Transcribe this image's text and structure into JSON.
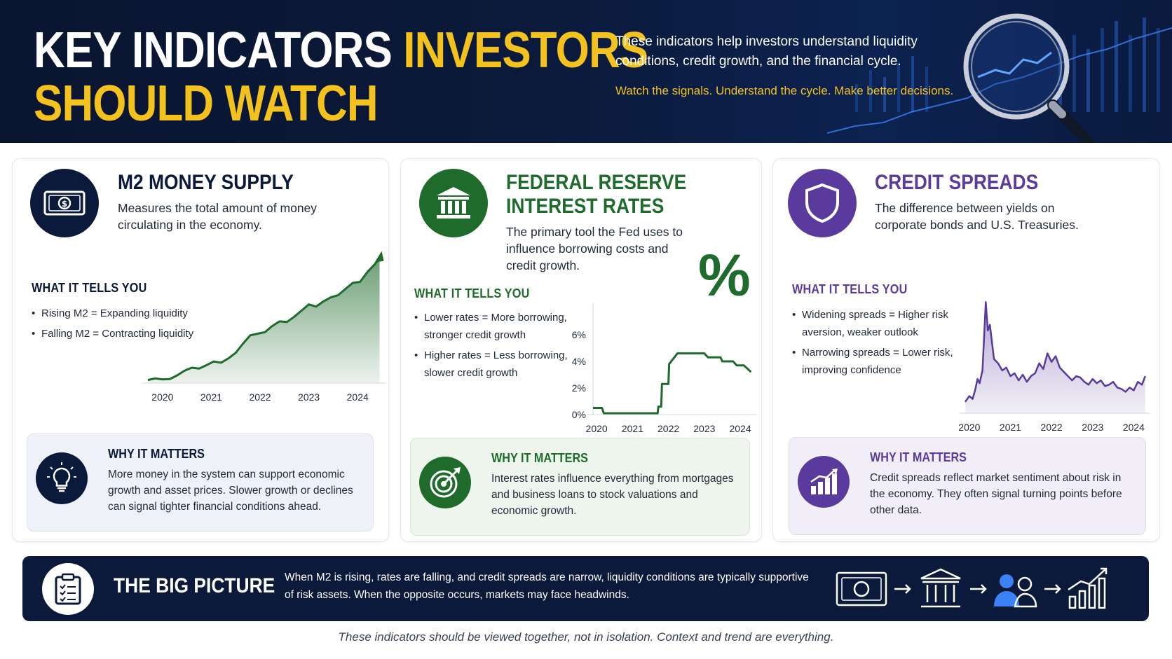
{
  "header": {
    "title_part1": "KEY INDICATORS ",
    "title_part2": "INVESTORS",
    "title_line2": "SHOULD WATCH",
    "description": "These indicators help investors understand liquidity conditions, credit growth, and the financial cycle.",
    "tagline": "Watch the signals. Understand the cycle. Make better decisions."
  },
  "colors": {
    "navy": "#0b1a3a",
    "gold": "#f4c21f",
    "green": "#1e6b2c",
    "purple": "#5b3a9e"
  },
  "panels": {
    "m2": {
      "icon": "money-bill-icon",
      "title": "M2 MONEY SUPPLY",
      "description": "Measures the total amount of money circulating in the economy.",
      "section_head": "WHAT IT TELLS YOU",
      "bullets": [
        "Rising M2 = Expanding liquidity",
        "Falling M2 = Contracting liquidity"
      ],
      "matters_icon": "lightbulb-icon",
      "matters_title": "WHY IT MATTERS",
      "matters_text": "More money in the system can support economic growth and asset prices. Slower growth or declines can signal tighter financial conditions ahead."
    },
    "fed": {
      "icon": "bank-building-icon",
      "title_line1": "FEDERAL RESERVE",
      "title_line2": "INTEREST RATES",
      "description": "The primary tool the Fed uses to influence borrowing costs and credit growth.",
      "percent_symbol": "%",
      "section_head": "WHAT IT TELLS YOU",
      "bullets": [
        "Lower rates = More borrowing, stronger credit growth",
        "Higher rates = Less borrowing, slower credit growth"
      ],
      "matters_icon": "target-icon",
      "matters_title": "WHY IT MATTERS",
      "matters_text": "Interest rates influence everything from mortgages and business loans to stock valuations and economic growth."
    },
    "credit": {
      "icon": "shield-icon",
      "title": "CREDIT SPREADS",
      "description": "The difference between yields on corporate bonds and U.S. Treasuries.",
      "section_head": "WHAT IT TELLS YOU",
      "bullets": [
        "Widening spreads = Higher risk aversion, weaker outlook",
        "Narrowing spreads = Lower risk, improving confidence"
      ],
      "matters_icon": "bar-chart-up-icon",
      "matters_title": "WHY IT MATTERS",
      "matters_text": "Credit spreads reflect market sentiment about risk in the economy. They often signal turning points before other data."
    }
  },
  "chart_data": [
    {
      "type": "area",
      "x_tick_labels": [
        "2020",
        "2021",
        "2022",
        "2023",
        "2024"
      ],
      "x": [
        2019.7,
        2019.85,
        2020.0,
        2020.15,
        2020.3,
        2020.45,
        2020.6,
        2020.75,
        2020.9,
        2021.05,
        2021.2,
        2021.35,
        2021.5,
        2021.65,
        2021.8,
        2021.95,
        2022.1,
        2022.25,
        2022.4,
        2022.55,
        2022.7,
        2022.85,
        2023.0,
        2023.15,
        2023.3,
        2023.45,
        2023.6,
        2023.75,
        2023.9,
        2024.05,
        2024.2,
        2024.35,
        2024.45
      ],
      "y": [
        1,
        1.5,
        1.2,
        1.3,
        2.5,
        4.0,
        5.0,
        4.7,
        5.8,
        7.0,
        6.6,
        8.0,
        9.8,
        12.8,
        15.5,
        16.0,
        16.5,
        18.5,
        20.0,
        19.8,
        21.5,
        23.5,
        25.5,
        24.8,
        26.5,
        27.8,
        28.5,
        30.5,
        32.5,
        32.8,
        36.0,
        38.5,
        40.5
      ],
      "ylim": [
        0,
        42
      ],
      "xlim": [
        2019.7,
        2024.5
      ],
      "color": "#1e6b2c"
    },
    {
      "type": "line",
      "x_tick_labels": [
        "2020",
        "2021",
        "2022",
        "2023",
        "2024"
      ],
      "y_tick_labels": [
        "6%",
        "4%",
        "2%",
        "0%"
      ],
      "x": [
        2019.9,
        2020.15,
        2020.2,
        2021.0,
        2021.5,
        2021.7,
        2021.72,
        2021.8,
        2021.82,
        2022.0,
        2022.02,
        2022.25,
        2023.0,
        2023.1,
        2023.45,
        2023.5,
        2023.8,
        2023.9,
        2024.1,
        2024.3
      ],
      "y": [
        0.5,
        0.5,
        0.1,
        0.1,
        0.1,
        0.1,
        0.6,
        0.6,
        2.3,
        2.3,
        3.8,
        4.6,
        4.6,
        4.3,
        4.3,
        4.0,
        4.0,
        3.7,
        3.7,
        3.2
      ],
      "ylim": [
        0,
        6
      ],
      "xlim": [
        2019.9,
        2024.35
      ],
      "color": "#1e6b2c"
    },
    {
      "type": "area",
      "x_tick_labels": [
        "2020",
        "2021",
        "2022",
        "2023",
        "2024"
      ],
      "x": [
        2019.9,
        2020.0,
        2020.08,
        2020.14,
        2020.2,
        2020.25,
        2020.32,
        2020.4,
        2020.45,
        2020.5,
        2020.55,
        2020.6,
        2020.7,
        2020.8,
        2020.9,
        2021.0,
        2021.1,
        2021.2,
        2021.3,
        2021.4,
        2021.5,
        2021.6,
        2021.7,
        2021.8,
        2021.9,
        2022.0,
        2022.1,
        2022.2,
        2022.3,
        2022.4,
        2022.5,
        2022.6,
        2022.7,
        2022.8,
        2022.9,
        2023.0,
        2023.1,
        2023.2,
        2023.3,
        2023.4,
        2023.5,
        2023.6,
        2023.7,
        2023.8,
        2023.9,
        2024.0,
        2024.1,
        2024.2,
        2024.28
      ],
      "y": [
        1.8,
        2.2,
        2.0,
        2.6,
        3.4,
        3.1,
        4.0,
        8.8,
        6.8,
        7.2,
        6.0,
        4.8,
        4.5,
        4.0,
        4.2,
        3.6,
        3.8,
        3.3,
        3.7,
        3.2,
        3.6,
        3.8,
        4.5,
        4.1,
        5.2,
        4.6,
        5.0,
        4.2,
        3.9,
        3.6,
        3.3,
        3.6,
        3.5,
        3.2,
        3.0,
        3.4,
        3.1,
        3.3,
        2.9,
        3.0,
        3.2,
        2.8,
        2.7,
        2.5,
        2.8,
        2.6,
        3.2,
        3.0,
        3.6
      ],
      "ylim": [
        1,
        9.5
      ],
      "xlim": [
        2019.9,
        2024.3
      ],
      "color": "#5b3a9e"
    }
  ],
  "bigpicture": {
    "icon": "clipboard-checklist-icon",
    "title": "THE BIG PICTURE",
    "text": "When M2 is rising, rates are falling, and credit spreads are narrow, liquidity conditions are typically supportive of risk assets. When the opposite occurs, markets may face headwinds.",
    "flow_icons": [
      "money-bill-icon",
      "bank-building-icon",
      "people-icon",
      "growth-chart-icon"
    ]
  },
  "footer": "These indicators should be viewed together, not in isolation. Context and trend are everything."
}
